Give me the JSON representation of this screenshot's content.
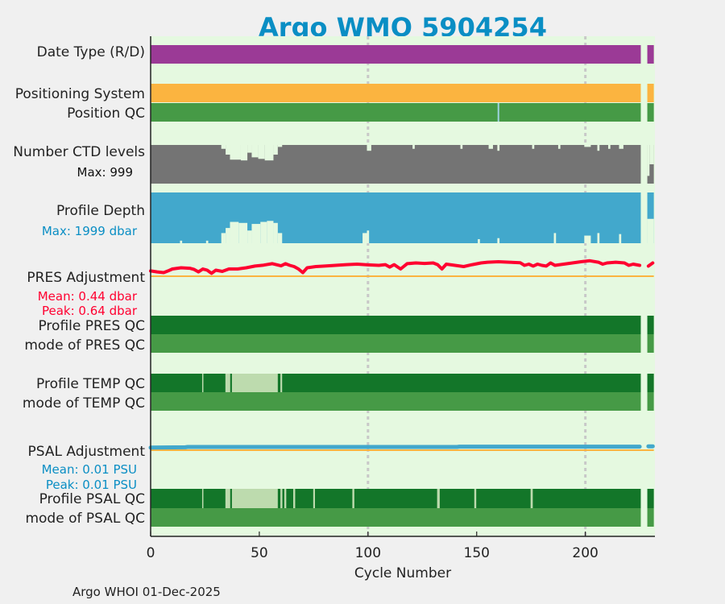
{
  "chart_data": {
    "type": "bar",
    "title": "Argo WMO 5904254",
    "xlabel": "Cycle Number",
    "xlim": [
      0,
      232
    ],
    "xticks": [
      0,
      50,
      100,
      150,
      200
    ],
    "grid_x": [
      100,
      200
    ],
    "missing_cycles": [
      226,
      227,
      228
    ],
    "last_cycle": 231,
    "footer": "Argo WHOI 01-Dec-2025",
    "colors": {
      "background": "#e5f9e0",
      "title": "#0a8ec4",
      "date_type": "#9b3a96",
      "positioning": "#fbb440",
      "qc_good": "#137629",
      "qc_mode": "#469a46",
      "qc_probably_good": "#bddbae",
      "qc_gap": "#e5f9e0",
      "ctd": "#747474",
      "depth": "#42a8cc",
      "pres_adj": "#ff0030",
      "psal_adj": "#42a8cc",
      "zero_line": "#fbb440",
      "pres_text": "#ff0030",
      "psal_text": "#0a8ec4"
    },
    "rows": {
      "date_type": {
        "label": "Date Type (R/D)"
      },
      "positioning": {
        "label": "Positioning System"
      },
      "position_qc": {
        "label": "Position QC",
        "flag_cycles": [
          160
        ]
      },
      "ctd_levels": {
        "label": "Number CTD levels",
        "max_label": "Max: 999",
        "max": 999,
        "reduced": [
          [
            33,
            34,
            0.9
          ],
          [
            35,
            36,
            0.75
          ],
          [
            37,
            41,
            0.62
          ],
          [
            42,
            44,
            0.6
          ],
          [
            45,
            46,
            0.8
          ],
          [
            47,
            49,
            0.68
          ],
          [
            50,
            52,
            0.64
          ],
          [
            53,
            56,
            0.6
          ],
          [
            57,
            58,
            0.75
          ],
          [
            59,
            60,
            0.95
          ],
          [
            100,
            101,
            0.85
          ],
          [
            121,
            121,
            0.9
          ],
          [
            143,
            143,
            0.9
          ],
          [
            156,
            157,
            0.9
          ],
          [
            160,
            160,
            0.85
          ],
          [
            176,
            176,
            0.9
          ],
          [
            188,
            188,
            0.9
          ],
          [
            200,
            202,
            0.95
          ],
          [
            206,
            206,
            0.85
          ],
          [
            211,
            211,
            0.9
          ],
          [
            216,
            217,
            0.9
          ],
          [
            229,
            229,
            0.2
          ],
          [
            230,
            231,
            0.5
          ]
        ]
      },
      "profile_depth": {
        "label": "Profile Depth",
        "max_label": "Max: 1999 dbar",
        "max": 1999,
        "reduced": [
          [
            14,
            14,
            0.95
          ],
          [
            26,
            26,
            0.95
          ],
          [
            33,
            34,
            0.8
          ],
          [
            35,
            36,
            0.7
          ],
          [
            37,
            40,
            0.58
          ],
          [
            41,
            44,
            0.6
          ],
          [
            45,
            46,
            0.75
          ],
          [
            47,
            50,
            0.62
          ],
          [
            51,
            53,
            0.58
          ],
          [
            54,
            56,
            0.56
          ],
          [
            57,
            58,
            0.6
          ],
          [
            59,
            60,
            0.8
          ],
          [
            98,
            99,
            0.8
          ],
          [
            100,
            100,
            0.75
          ],
          [
            151,
            151,
            0.92
          ],
          [
            160,
            160,
            0.9
          ],
          [
            186,
            186,
            0.8
          ],
          [
            200,
            202,
            0.85
          ],
          [
            206,
            206,
            0.8
          ],
          [
            216,
            216,
            0.82
          ],
          [
            229,
            231,
            0.52
          ]
        ]
      },
      "pres_adjustment": {
        "label": "PRES Adjustment",
        "mean_label": "Mean: 0.44 dbar",
        "peak_label": "Peak: 0.64 dbar",
        "mean": 0.44,
        "peak": 0.64,
        "series": [
          [
            0,
            0.22
          ],
          [
            3,
            0.18
          ],
          [
            6,
            0.15
          ],
          [
            8,
            0.22
          ],
          [
            10,
            0.3
          ],
          [
            14,
            0.35
          ],
          [
            18,
            0.33
          ],
          [
            20,
            0.28
          ],
          [
            22,
            0.18
          ],
          [
            24,
            0.3
          ],
          [
            26,
            0.25
          ],
          [
            28,
            0.12
          ],
          [
            30,
            0.25
          ],
          [
            33,
            0.2
          ],
          [
            36,
            0.3
          ],
          [
            40,
            0.3
          ],
          [
            44,
            0.35
          ],
          [
            48,
            0.42
          ],
          [
            52,
            0.46
          ],
          [
            56,
            0.52
          ],
          [
            60,
            0.43
          ],
          [
            62,
            0.52
          ],
          [
            64,
            0.45
          ],
          [
            66,
            0.4
          ],
          [
            68,
            0.3
          ],
          [
            70,
            0.15
          ],
          [
            72,
            0.35
          ],
          [
            76,
            0.4
          ],
          [
            80,
            0.42
          ],
          [
            85,
            0.45
          ],
          [
            90,
            0.48
          ],
          [
            95,
            0.5
          ],
          [
            100,
            0.47
          ],
          [
            105,
            0.45
          ],
          [
            108,
            0.48
          ],
          [
            110,
            0.38
          ],
          [
            112,
            0.48
          ],
          [
            115,
            0.3
          ],
          [
            118,
            0.52
          ],
          [
            122,
            0.55
          ],
          [
            126,
            0.53
          ],
          [
            130,
            0.55
          ],
          [
            132,
            0.48
          ],
          [
            134,
            0.3
          ],
          [
            136,
            0.5
          ],
          [
            140,
            0.45
          ],
          [
            144,
            0.4
          ],
          [
            148,
            0.48
          ],
          [
            152,
            0.55
          ],
          [
            155,
            0.58
          ],
          [
            160,
            0.6
          ],
          [
            165,
            0.58
          ],
          [
            170,
            0.56
          ],
          [
            172,
            0.45
          ],
          [
            174,
            0.5
          ],
          [
            176,
            0.42
          ],
          [
            178,
            0.5
          ],
          [
            180,
            0.45
          ],
          [
            182,
            0.42
          ],
          [
            184,
            0.55
          ],
          [
            186,
            0.45
          ],
          [
            190,
            0.5
          ],
          [
            194,
            0.55
          ],
          [
            198,
            0.6
          ],
          [
            202,
            0.64
          ],
          [
            206,
            0.58
          ],
          [
            208,
            0.5
          ],
          [
            210,
            0.55
          ],
          [
            214,
            0.58
          ],
          [
            218,
            0.55
          ],
          [
            220,
            0.45
          ],
          [
            222,
            0.5
          ],
          [
            225,
            0.45
          ],
          [
            229,
            0.42
          ],
          [
            231,
            0.55
          ]
        ]
      },
      "pres_qc": {
        "label": "Profile PRES QC"
      },
      "pres_mode": {
        "label": "mode of PRES QC"
      },
      "temp_qc": {
        "label": "Profile TEMP QC",
        "gap_segments": [
          [
            23.7,
            24.2
          ],
          [
            34.4,
            36.6
          ],
          [
            59.7,
            60.5
          ]
        ],
        "probably_good_segments": [
          [
            37.4,
            58.5
          ]
        ]
      },
      "temp_mode": {
        "label": "mode of TEMP QC"
      },
      "psal_adjustment": {
        "label": "PSAL Adjustment",
        "mean_label": "Mean: 0.01 PSU",
        "peak_label": "Peak: 0.01 PSU",
        "mean": 0.01,
        "peak": 0.01,
        "series": [
          [
            0,
            0.008
          ],
          [
            16,
            0.009
          ],
          [
            17,
            0.01
          ],
          [
            141,
            0.01
          ],
          [
            142,
            0.011
          ],
          [
            225,
            0.011
          ],
          [
            229,
            0.012
          ],
          [
            231,
            0.012
          ]
        ]
      },
      "psal_qc": {
        "label": "Profile PSAL QC",
        "gap_segments": [
          [
            23.7,
            24.2
          ],
          [
            34.4,
            36.6
          ],
          [
            59.7,
            60.6
          ],
          [
            61.5,
            62.4
          ],
          [
            65.6,
            66.5
          ],
          [
            74.8,
            75.6
          ],
          [
            92.8,
            93.7
          ],
          [
            131.8,
            133.0
          ],
          [
            148.9,
            149.8
          ],
          [
            174.8,
            175.8
          ]
        ],
        "probably_good_segments": [
          [
            37.4,
            58.5
          ]
        ]
      },
      "psal_mode": {
        "label": "mode of PSAL QC"
      }
    }
  }
}
